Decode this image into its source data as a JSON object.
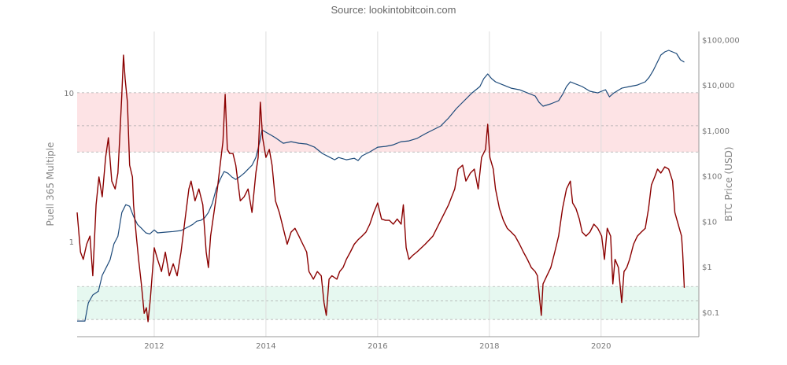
{
  "source_label": "Source: lookintobitcoin.com",
  "chart_data": {
    "type": "line",
    "title": "",
    "xlabel": "",
    "ylabel_left": "Puell 365 Multiple",
    "ylabel_right": "BTC Price (USD)",
    "xlim": [
      2010.62,
      2021.75
    ],
    "x_ticks": [
      2012,
      2014,
      2016,
      2018,
      2020
    ],
    "x_tick_labels": [
      "2012",
      "2014",
      "2016",
      "2018",
      "2020"
    ],
    "y_left_scale": "log",
    "y_left_lim": [
      0.23,
      25.8
    ],
    "y_left_ticks": [
      1,
      10
    ],
    "y_left_tick_labels": [
      "1",
      "10"
    ],
    "y_right_scale": "log",
    "y_right_lim": [
      0.029,
      152000
    ],
    "y_right_ticks": [
      0.1,
      1,
      10,
      100,
      1000,
      10000,
      100000
    ],
    "y_right_tick_labels": [
      "$0.1",
      "$1",
      "$10",
      "$100",
      "$1,000",
      "$10,000",
      "$100,000"
    ],
    "grid": {
      "vertical": true,
      "horizontal": false
    },
    "bands": [
      {
        "zone": "high",
        "axis": "left",
        "from": 4,
        "to": 10,
        "midline": 6,
        "color": "#fde3e5"
      },
      {
        "zone": "low",
        "axis": "left",
        "from": 0.3,
        "to": 0.5,
        "midline": 0.4,
        "color": "#e6f8f0"
      }
    ],
    "series": [
      {
        "axis": "right",
        "color": "#1d4a7a",
        "points": [
          [
            2010.62,
            0.064
          ],
          [
            2010.76,
            0.064
          ],
          [
            2010.82,
            0.16
          ],
          [
            2010.9,
            0.24
          ],
          [
            2011.0,
            0.29
          ],
          [
            2011.07,
            0.65
          ],
          [
            2011.14,
            0.96
          ],
          [
            2011.21,
            1.43
          ],
          [
            2011.28,
            3.2
          ],
          [
            2011.35,
            4.7
          ],
          [
            2011.42,
            15.7
          ],
          [
            2011.49,
            23.4
          ],
          [
            2011.56,
            21.6
          ],
          [
            2011.63,
            12.9
          ],
          [
            2011.7,
            8.6
          ],
          [
            2011.77,
            7.1
          ],
          [
            2011.85,
            5.6
          ],
          [
            2011.92,
            5.3
          ],
          [
            2012.0,
            6.5
          ],
          [
            2012.06,
            5.6
          ],
          [
            2012.2,
            5.8
          ],
          [
            2012.34,
            6.0
          ],
          [
            2012.48,
            6.3
          ],
          [
            2012.62,
            7.7
          ],
          [
            2012.69,
            8.6
          ],
          [
            2012.76,
            10.1
          ],
          [
            2012.83,
            10.5
          ],
          [
            2012.9,
            11.9
          ],
          [
            2012.97,
            15.7
          ],
          [
            2013.04,
            25
          ],
          [
            2013.11,
            52
          ],
          [
            2013.18,
            84
          ],
          [
            2013.25,
            125
          ],
          [
            2013.32,
            115
          ],
          [
            2013.39,
            95
          ],
          [
            2013.46,
            84
          ],
          [
            2013.54,
            98
          ],
          [
            2013.61,
            115
          ],
          [
            2013.68,
            141
          ],
          [
            2013.75,
            172
          ],
          [
            2013.82,
            256
          ],
          [
            2013.89,
            570
          ],
          [
            2013.93,
            1037
          ],
          [
            2014.0,
            920
          ],
          [
            2014.1,
            784
          ],
          [
            2014.17,
            695
          ],
          [
            2014.31,
            526
          ],
          [
            2014.45,
            570
          ],
          [
            2014.59,
            526
          ],
          [
            2014.73,
            505
          ],
          [
            2014.87,
            431
          ],
          [
            2015.01,
            313
          ],
          [
            2015.15,
            256
          ],
          [
            2015.23,
            228
          ],
          [
            2015.3,
            256
          ],
          [
            2015.44,
            228
          ],
          [
            2015.58,
            246
          ],
          [
            2015.65,
            219
          ],
          [
            2015.72,
            278
          ],
          [
            2015.86,
            339
          ],
          [
            2016.0,
            431
          ],
          [
            2016.14,
            449
          ],
          [
            2016.28,
            486
          ],
          [
            2016.42,
            570
          ],
          [
            2016.56,
            593
          ],
          [
            2016.7,
            668
          ],
          [
            2016.85,
            849
          ],
          [
            2016.99,
            1037
          ],
          [
            2017.13,
            1265
          ],
          [
            2017.27,
            1888
          ],
          [
            2017.41,
            3048
          ],
          [
            2017.55,
            4540
          ],
          [
            2017.69,
            6760
          ],
          [
            2017.83,
            9310
          ],
          [
            2017.9,
            13870
          ],
          [
            2017.97,
            17620
          ],
          [
            2018.04,
            13870
          ],
          [
            2018.11,
            11830
          ],
          [
            2018.25,
            10070
          ],
          [
            2018.39,
            8590
          ],
          [
            2018.54,
            7930
          ],
          [
            2018.68,
            6760
          ],
          [
            2018.82,
            5770
          ],
          [
            2018.89,
            4190
          ],
          [
            2018.96,
            3440
          ],
          [
            2019.1,
            3870
          ],
          [
            2019.24,
            4540
          ],
          [
            2019.31,
            6240
          ],
          [
            2019.38,
            9310
          ],
          [
            2019.45,
            11830
          ],
          [
            2019.52,
            10910
          ],
          [
            2019.66,
            9310
          ],
          [
            2019.8,
            7330
          ],
          [
            2019.94,
            6760
          ],
          [
            2020.01,
            7330
          ],
          [
            2020.08,
            7930
          ],
          [
            2020.15,
            5540
          ],
          [
            2020.23,
            6760
          ],
          [
            2020.37,
            8590
          ],
          [
            2020.51,
            9310
          ],
          [
            2020.65,
            10070
          ],
          [
            2020.79,
            11830
          ],
          [
            2020.86,
            14870
          ],
          [
            2020.93,
            20650
          ],
          [
            2021.0,
            30830
          ],
          [
            2021.07,
            45920
          ],
          [
            2021.14,
            53870
          ],
          [
            2021.21,
            58350
          ],
          [
            2021.28,
            53870
          ],
          [
            2021.35,
            49750
          ],
          [
            2021.42,
            36140
          ],
          [
            2021.49,
            32060
          ]
        ]
      },
      {
        "axis": "left",
        "color": "#8b0000",
        "points": [
          [
            2010.62,
            1.57
          ],
          [
            2010.68,
            0.85
          ],
          [
            2010.73,
            0.76
          ],
          [
            2010.79,
            0.96
          ],
          [
            2010.85,
            1.09
          ],
          [
            2010.9,
            0.59
          ],
          [
            2010.96,
            1.77
          ],
          [
            2011.01,
            2.72
          ],
          [
            2011.07,
            2.0
          ],
          [
            2011.13,
            3.68
          ],
          [
            2011.18,
            4.99
          ],
          [
            2011.24,
            2.55
          ],
          [
            2011.3,
            2.26
          ],
          [
            2011.35,
            2.89
          ],
          [
            2011.38,
            4.7
          ],
          [
            2011.42,
            9.76
          ],
          [
            2011.45,
            17.9
          ],
          [
            2011.48,
            12.4
          ],
          [
            2011.52,
            8.64
          ],
          [
            2011.56,
            3.26
          ],
          [
            2011.61,
            2.72
          ],
          [
            2011.63,
            1.77
          ],
          [
            2011.68,
            1.09
          ],
          [
            2011.72,
            0.76
          ],
          [
            2011.77,
            0.52
          ],
          [
            2011.82,
            0.33
          ],
          [
            2011.86,
            0.36
          ],
          [
            2011.89,
            0.29
          ],
          [
            2011.93,
            0.41
          ],
          [
            2012.0,
            0.91
          ],
          [
            2012.06,
            0.76
          ],
          [
            2012.13,
            0.63
          ],
          [
            2012.2,
            0.85
          ],
          [
            2012.27,
            0.59
          ],
          [
            2012.34,
            0.71
          ],
          [
            2012.41,
            0.59
          ],
          [
            2012.48,
            0.85
          ],
          [
            2012.55,
            1.39
          ],
          [
            2012.62,
            2.26
          ],
          [
            2012.66,
            2.55
          ],
          [
            2012.73,
            1.88
          ],
          [
            2012.8,
            2.26
          ],
          [
            2012.87,
            1.77
          ],
          [
            2012.93,
            0.85
          ],
          [
            2012.97,
            0.67
          ],
          [
            2013.01,
            1.09
          ],
          [
            2013.07,
            1.57
          ],
          [
            2013.13,
            2.26
          ],
          [
            2013.18,
            3.26
          ],
          [
            2013.23,
            4.7
          ],
          [
            2013.27,
            9.76
          ],
          [
            2013.31,
            4.16
          ],
          [
            2013.35,
            3.91
          ],
          [
            2013.41,
            3.91
          ],
          [
            2013.46,
            3.26
          ],
          [
            2013.54,
            1.88
          ],
          [
            2013.61,
            2.0
          ],
          [
            2013.68,
            2.26
          ],
          [
            2013.75,
            1.57
          ],
          [
            2013.82,
            2.89
          ],
          [
            2013.86,
            3.68
          ],
          [
            2013.9,
            8.64
          ],
          [
            2013.94,
            4.99
          ],
          [
            2014.0,
            3.68
          ],
          [
            2014.06,
            4.16
          ],
          [
            2014.11,
            3.26
          ],
          [
            2014.17,
            1.88
          ],
          [
            2014.24,
            1.57
          ],
          [
            2014.31,
            1.23
          ],
          [
            2014.38,
            0.96
          ],
          [
            2014.45,
            1.16
          ],
          [
            2014.52,
            1.23
          ],
          [
            2014.59,
            1.09
          ],
          [
            2014.66,
            0.96
          ],
          [
            2014.73,
            0.85
          ],
          [
            2014.77,
            0.63
          ],
          [
            2014.85,
            0.56
          ],
          [
            2014.92,
            0.63
          ],
          [
            2014.99,
            0.59
          ],
          [
            2015.04,
            0.39
          ],
          [
            2015.08,
            0.32
          ],
          [
            2015.13,
            0.56
          ],
          [
            2015.18,
            0.59
          ],
          [
            2015.27,
            0.56
          ],
          [
            2015.32,
            0.63
          ],
          [
            2015.38,
            0.67
          ],
          [
            2015.44,
            0.76
          ],
          [
            2015.51,
            0.85
          ],
          [
            2015.58,
            0.96
          ],
          [
            2015.65,
            1.03
          ],
          [
            2015.72,
            1.09
          ],
          [
            2015.79,
            1.16
          ],
          [
            2015.86,
            1.31
          ],
          [
            2015.93,
            1.57
          ],
          [
            2016.0,
            1.82
          ],
          [
            2016.07,
            1.42
          ],
          [
            2016.14,
            1.39
          ],
          [
            2016.21,
            1.39
          ],
          [
            2016.28,
            1.31
          ],
          [
            2016.35,
            1.42
          ],
          [
            2016.42,
            1.31
          ],
          [
            2016.46,
            1.77
          ],
          [
            2016.51,
            0.91
          ],
          [
            2016.56,
            0.76
          ],
          [
            2016.63,
            0.81
          ],
          [
            2016.7,
            0.85
          ],
          [
            2016.85,
            0.96
          ],
          [
            2016.99,
            1.09
          ],
          [
            2017.13,
            1.39
          ],
          [
            2017.27,
            1.77
          ],
          [
            2017.38,
            2.26
          ],
          [
            2017.44,
            3.07
          ],
          [
            2017.52,
            3.26
          ],
          [
            2017.58,
            2.55
          ],
          [
            2017.66,
            2.89
          ],
          [
            2017.73,
            3.07
          ],
          [
            2017.8,
            2.26
          ],
          [
            2017.86,
            3.68
          ],
          [
            2017.93,
            4.16
          ],
          [
            2017.97,
            6.14
          ],
          [
            2018.01,
            3.68
          ],
          [
            2018.07,
            3.07
          ],
          [
            2018.11,
            2.26
          ],
          [
            2018.18,
            1.67
          ],
          [
            2018.25,
            1.39
          ],
          [
            2018.32,
            1.23
          ],
          [
            2018.39,
            1.16
          ],
          [
            2018.46,
            1.09
          ],
          [
            2018.54,
            0.96
          ],
          [
            2018.61,
            0.85
          ],
          [
            2018.68,
            0.76
          ],
          [
            2018.75,
            0.67
          ],
          [
            2018.82,
            0.63
          ],
          [
            2018.86,
            0.59
          ],
          [
            2018.9,
            0.41
          ],
          [
            2018.93,
            0.32
          ],
          [
            2018.96,
            0.52
          ],
          [
            2019.03,
            0.59
          ],
          [
            2019.1,
            0.67
          ],
          [
            2019.17,
            0.85
          ],
          [
            2019.24,
            1.09
          ],
          [
            2019.31,
            1.67
          ],
          [
            2019.38,
            2.26
          ],
          [
            2019.45,
            2.55
          ],
          [
            2019.49,
            1.82
          ],
          [
            2019.55,
            1.67
          ],
          [
            2019.61,
            1.42
          ],
          [
            2019.66,
            1.16
          ],
          [
            2019.73,
            1.09
          ],
          [
            2019.8,
            1.16
          ],
          [
            2019.87,
            1.31
          ],
          [
            2019.94,
            1.23
          ],
          [
            2020.01,
            1.09
          ],
          [
            2020.06,
            0.76
          ],
          [
            2020.11,
            1.23
          ],
          [
            2020.17,
            1.09
          ],
          [
            2020.21,
            0.52
          ],
          [
            2020.25,
            0.76
          ],
          [
            2020.31,
            0.67
          ],
          [
            2020.37,
            0.39
          ],
          [
            2020.41,
            0.63
          ],
          [
            2020.46,
            0.67
          ],
          [
            2020.51,
            0.76
          ],
          [
            2020.58,
            0.96
          ],
          [
            2020.65,
            1.09
          ],
          [
            2020.72,
            1.16
          ],
          [
            2020.79,
            1.23
          ],
          [
            2020.85,
            1.67
          ],
          [
            2020.9,
            2.4
          ],
          [
            2020.96,
            2.72
          ],
          [
            2021.01,
            3.07
          ],
          [
            2021.07,
            2.89
          ],
          [
            2021.14,
            3.18
          ],
          [
            2021.21,
            3.07
          ],
          [
            2021.28,
            2.55
          ],
          [
            2021.32,
            1.57
          ],
          [
            2021.38,
            1.31
          ],
          [
            2021.44,
            1.09
          ],
          [
            2021.46,
            0.85
          ],
          [
            2021.49,
            0.49
          ]
        ]
      }
    ]
  }
}
